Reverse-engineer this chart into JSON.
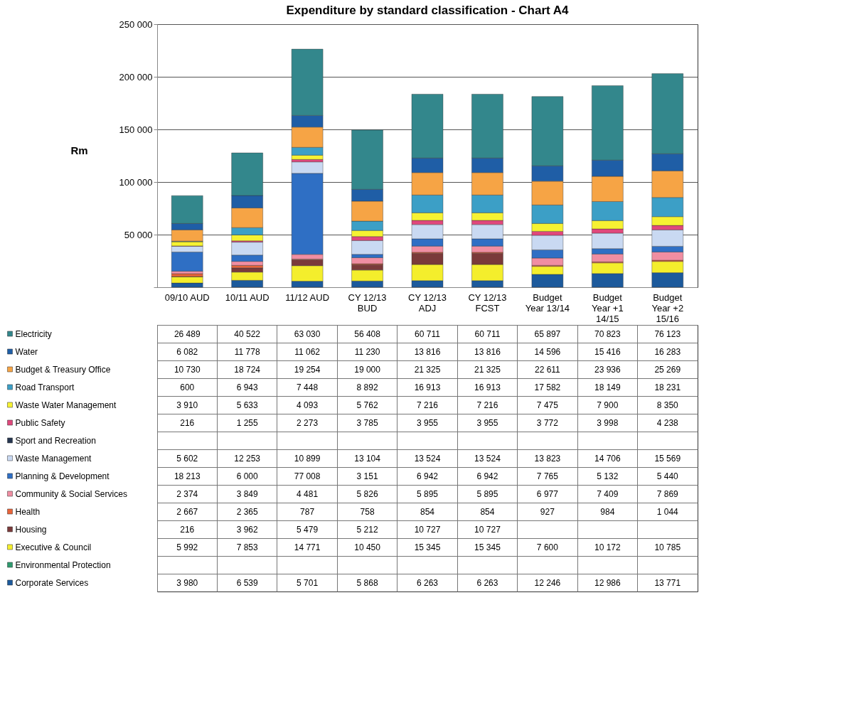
{
  "chart_data": {
    "type": "bar",
    "title": "Expenditure by standard classification - Chart A4",
    "ylabel": "Rm",
    "stacked": true,
    "data_labels": true,
    "grid": "y",
    "legend": "left",
    "categories": [
      "09/10 AUD",
      "10/11 AUD",
      "11/12 AUD",
      "CY 12/13 BUD",
      "CY 12/13 ADJ",
      "CY 12/13 FCST",
      "Budget Year 13/14",
      "Budget Year +1 14/15",
      "Budget Year +2 15/16"
    ],
    "ylim": [
      0,
      250000
    ],
    "yticks": [
      {
        "value": 0,
        "label": null
      },
      {
        "value": 50000,
        "label": "50 000"
      },
      {
        "value": 100000,
        "label": "100 000"
      },
      {
        "value": 150000,
        "label": "150 000"
      },
      {
        "value": 200000,
        "label": "200 000"
      },
      {
        "value": 250000,
        "label": "250 000"
      }
    ],
    "series": [
      {
        "name": "Corporate Services",
        "color": "#1c5a9c",
        "values": [
          3980,
          6539,
          5701,
          5868,
          6263,
          6263,
          12246,
          12986,
          13771
        ]
      },
      {
        "name": "Environmental Protection",
        "color": "#2e9a6e",
        "values": [
          null,
          null,
          null,
          null,
          null,
          null,
          null,
          null,
          null
        ]
      },
      {
        "name": "Executive & Council",
        "color": "#f4ee2c",
        "values": [
          5992,
          7853,
          14771,
          10450,
          15345,
          15345,
          7600,
          10172,
          10785
        ]
      },
      {
        "name": "Housing",
        "color": "#7a3a3a",
        "values": [
          216,
          3962,
          5479,
          5212,
          10727,
          10727,
          null,
          null,
          null
        ]
      },
      {
        "name": "Health",
        "color": "#e8643a",
        "values": [
          2667,
          2365,
          787,
          758,
          854,
          854,
          927,
          984,
          1044
        ]
      },
      {
        "name": "Community & Social Services",
        "color": "#f08ea2",
        "values": [
          2374,
          3849,
          4481,
          5826,
          5895,
          5895,
          6977,
          7409,
          7869
        ]
      },
      {
        "name": "Planning & Development",
        "color": "#2f6fc4",
        "values": [
          18213,
          6000,
          77008,
          3151,
          6942,
          6942,
          7765,
          5132,
          5440
        ]
      },
      {
        "name": "Waste Management",
        "color": "#c9d9f2",
        "values": [
          5602,
          12253,
          10899,
          13104,
          13524,
          13524,
          13823,
          14706,
          15569
        ]
      },
      {
        "name": "Sport and Recreation",
        "color": "#263650",
        "values": [
          null,
          null,
          null,
          null,
          null,
          null,
          null,
          null,
          null
        ]
      },
      {
        "name": "Public Safety",
        "color": "#e0487c",
        "values": [
          216,
          1255,
          2273,
          3785,
          3955,
          3955,
          3772,
          3998,
          4238
        ]
      },
      {
        "name": "Waste Water Management",
        "color": "#f6f232",
        "values": [
          3910,
          5633,
          4093,
          5762,
          7216,
          7216,
          7475,
          7900,
          8350
        ]
      },
      {
        "name": "Road Transport",
        "color": "#3c9fc6",
        "values": [
          600,
          6943,
          7448,
          8892,
          16913,
          16913,
          17582,
          18149,
          18231
        ]
      },
      {
        "name": "Budget & Treasury Office",
        "color": "#f6a445",
        "values": [
          10730,
          18724,
          19254,
          19000,
          21325,
          21325,
          22611,
          23936,
          25269
        ]
      },
      {
        "name": "Water",
        "color": "#1f5ea6",
        "values": [
          6082,
          11778,
          11062,
          11230,
          13816,
          13816,
          14596,
          15416,
          16283
        ]
      },
      {
        "name": "Electricity",
        "color": "#33878c",
        "values": [
          26489,
          40522,
          63030,
          56408,
          60711,
          60711,
          65897,
          70823,
          76123
        ]
      }
    ]
  }
}
